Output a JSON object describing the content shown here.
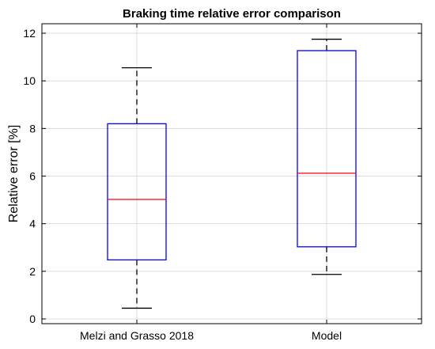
{
  "chart_data": {
    "type": "boxplot",
    "title": "Braking time relative error comparison",
    "xlabel": "",
    "ylabel": "Relative error [%]",
    "ylim": [
      -0.2,
      12.4
    ],
    "yticks": [
      0,
      2,
      4,
      6,
      8,
      10,
      12
    ],
    "categories": [
      "Melzi and Grasso 2018",
      "Model"
    ],
    "boxes": [
      {
        "category": "Melzi and Grasso 2018",
        "min": 0.45,
        "q1": 2.48,
        "median": 5.02,
        "q3": 8.2,
        "max": 10.55
      },
      {
        "category": "Model",
        "min": 1.87,
        "q1": 3.03,
        "median": 6.12,
        "q3": 11.27,
        "max": 11.75
      }
    ],
    "grid": true,
    "colors": {
      "box": "#0000ff",
      "median": "#ff0000",
      "whisker": "#000000",
      "grid": "#dcdcdc"
    }
  }
}
